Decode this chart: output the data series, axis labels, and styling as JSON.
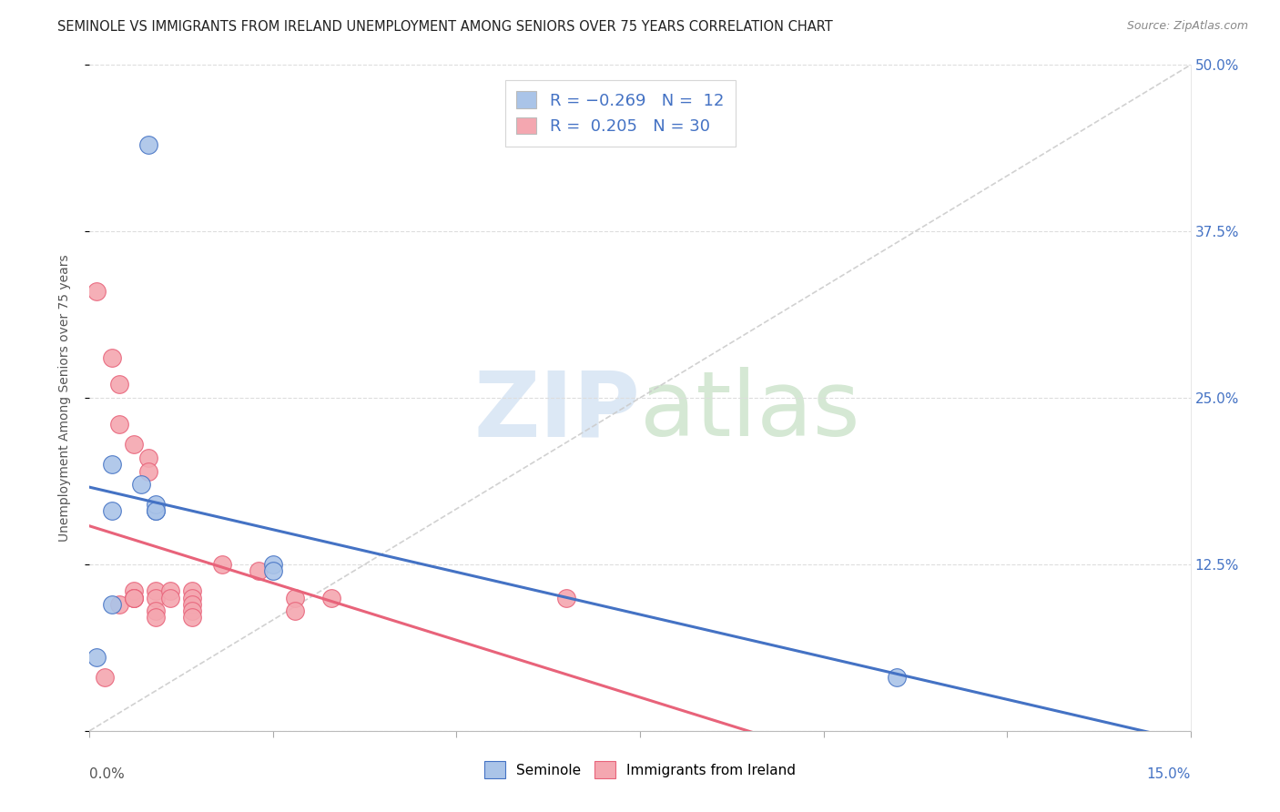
{
  "title": "SEMINOLE VS IMMIGRANTS FROM IRELAND UNEMPLOYMENT AMONG SENIORS OVER 75 YEARS CORRELATION CHART",
  "source": "Source: ZipAtlas.com",
  "ylabel": "Unemployment Among Seniors over 75 years",
  "background_color": "#ffffff",
  "grid_color": "#dddddd",
  "seminole_color": "#aac4e8",
  "seminole_line_color": "#4472c4",
  "ireland_color": "#f4a7b0",
  "ireland_line_color": "#e8637a",
  "xlim": [
    0.0,
    0.15
  ],
  "ylim": [
    0.0,
    0.5
  ],
  "seminole_x": [
    0.008,
    0.003,
    0.003,
    0.007,
    0.009,
    0.009,
    0.009,
    0.003,
    0.025,
    0.025,
    0.11,
    0.001
  ],
  "seminole_y": [
    0.44,
    0.2,
    0.165,
    0.185,
    0.165,
    0.17,
    0.165,
    0.095,
    0.125,
    0.12,
    0.04,
    0.055
  ],
  "ireland_x": [
    0.001,
    0.003,
    0.004,
    0.004,
    0.004,
    0.006,
    0.006,
    0.006,
    0.006,
    0.006,
    0.008,
    0.008,
    0.009,
    0.009,
    0.009,
    0.009,
    0.011,
    0.011,
    0.014,
    0.014,
    0.014,
    0.014,
    0.014,
    0.018,
    0.023,
    0.028,
    0.028,
    0.033,
    0.065,
    0.002
  ],
  "ireland_y": [
    0.33,
    0.28,
    0.26,
    0.23,
    0.095,
    0.215,
    0.105,
    0.1,
    0.1,
    0.1,
    0.205,
    0.195,
    0.105,
    0.1,
    0.09,
    0.085,
    0.105,
    0.1,
    0.105,
    0.1,
    0.095,
    0.09,
    0.085,
    0.125,
    0.12,
    0.1,
    0.09,
    0.1,
    0.1,
    0.04
  ],
  "title_fontsize": 10.5,
  "source_fontsize": 9,
  "axis_fontsize": 10,
  "legend_fontsize": 13,
  "watermark_fontsize": 72
}
